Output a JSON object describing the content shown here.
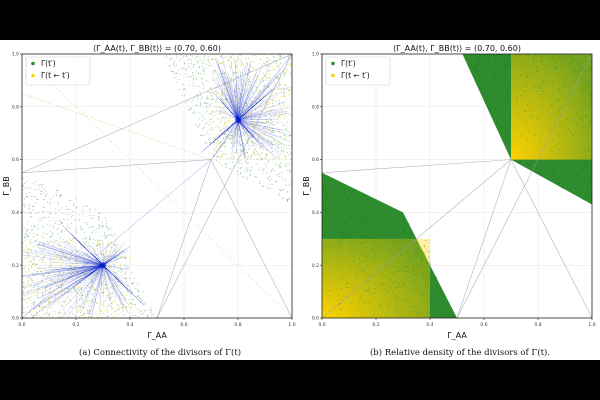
{
  "chart_data": [
    {
      "type": "scatter",
      "panel": "a",
      "title": "⟨Γ_AA(t), Γ_BB(t)⟩ = (0.70, 0.60)",
      "xlabel": "Γ_AA",
      "ylabel": "Γ_BB",
      "xlim": [
        0,
        1
      ],
      "ylim": [
        0,
        1
      ],
      "xticks": [
        "0.0",
        "0.2",
        "0.4",
        "0.6",
        "0.8",
        "1.0"
      ],
      "yticks": [
        "0.0",
        "0.2",
        "0.4",
        "0.6",
        "0.8",
        "1.0"
      ],
      "grid": true,
      "legend_position": "top-left",
      "center_point": [
        0.7,
        0.6
      ],
      "series": [
        {
          "name": "Γ(t′)",
          "color": "#2e8b2e",
          "region_polygons": [
            [
              [
                0.0,
                0.55
              ],
              [
                0.3,
                0.4
              ],
              [
                0.5,
                0.0
              ],
              [
                0.0,
                0.0
              ]
            ],
            [
              [
                0.7,
                0.6
              ],
              [
                0.52,
                1.0
              ],
              [
                1.0,
                1.0
              ],
              [
                1.0,
                0.43
              ]
            ]
          ]
        },
        {
          "name": "Γ(t ← t′)",
          "color": "#ffd200",
          "region_boxes": [
            [
              0.0,
              0.0,
              0.4,
              0.3
            ],
            [
              0.7,
              0.6,
              1.0,
              1.0
            ]
          ]
        }
      ],
      "connectivity": {
        "color": "#0018c8",
        "hubs": [
          {
            "center": [
              0.3,
              0.2
            ],
            "scatter_box": [
              0.0,
              0.0,
              0.4,
              0.3
            ]
          },
          {
            "center": [
              0.8,
              0.75
            ],
            "scatter_box": [
              0.7,
              0.6,
              1.0,
              1.0
            ]
          }
        ]
      },
      "reference_lines": {
        "blue": [
          [
            [
              0.0,
              0.0
            ],
            [
              0.7,
              0.6
            ]
          ],
          [
            [
              0.7,
              0.6
            ],
            [
              1.0,
              1.0
            ]
          ]
        ],
        "gray": [
          [
            [
              0.0,
              0.55
            ],
            [
              0.7,
              0.6
            ]
          ],
          [
            [
              0.5,
              0.0
            ],
            [
              0.7,
              0.6
            ]
          ],
          [
            [
              0.5,
              0.0
            ],
            [
              1.0,
              1.0
            ]
          ],
          [
            [
              0.0,
              0.55
            ],
            [
              1.0,
              1.0
            ]
          ],
          [
            [
              1.0,
              0.0
            ],
            [
              0.7,
              0.6
            ]
          ]
        ],
        "gold": [
          [
            [
              0.0,
              1.0
            ],
            [
              1.0,
              0.0
            ]
          ],
          [
            [
              0.0,
              0.85
            ],
            [
              0.7,
              0.6
            ]
          ]
        ]
      }
    },
    {
      "type": "scatter",
      "panel": "b",
      "title": "⟨Γ_AA(t), Γ_BB(t)⟩ = (0.70, 0.60)",
      "xlabel": "Γ_AA",
      "ylabel": "Γ_BB",
      "xlim": [
        0,
        1
      ],
      "ylim": [
        0,
        1
      ],
      "xticks": [
        "0.0",
        "0.2",
        "0.4",
        "0.6",
        "0.8",
        "1.0"
      ],
      "yticks": [
        "0.0",
        "0.2",
        "0.4",
        "0.6",
        "0.8",
        "1.0"
      ],
      "grid": true,
      "legend_position": "top-left",
      "center_point": [
        0.7,
        0.6
      ],
      "series": [
        {
          "name": "Γ(t′)",
          "color": "#2e8b2e",
          "region_polygons": [
            [
              [
                0.0,
                0.55
              ],
              [
                0.3,
                0.4
              ],
              [
                0.5,
                0.0
              ],
              [
                0.0,
                0.0
              ]
            ],
            [
              [
                0.7,
                0.6
              ],
              [
                0.52,
                1.0
              ],
              [
                1.0,
                1.0
              ],
              [
                1.0,
                0.43
              ]
            ]
          ]
        },
        {
          "name": "Γ(t ← t′)",
          "color": "#ffd200",
          "region_boxes": [
            [
              0.0,
              0.0,
              0.4,
              0.3
            ],
            [
              0.7,
              0.6,
              1.0,
              1.0
            ]
          ]
        }
      ],
      "reference_lines": {
        "gray": [
          [
            [
              0.0,
              0.55
            ],
            [
              0.7,
              0.6
            ]
          ],
          [
            [
              0.5,
              0.0
            ],
            [
              0.7,
              0.6
            ]
          ],
          [
            [
              0.5,
              0.0
            ],
            [
              1.0,
              1.0
            ]
          ],
          [
            [
              1.0,
              0.0
            ],
            [
              0.7,
              0.6
            ]
          ],
          [
            [
              0.0,
              0.0
            ],
            [
              0.7,
              0.6
            ]
          ]
        ]
      }
    }
  ],
  "captions": {
    "a": "(a) Connectivity of the divisors of Γ(t)",
    "b": "(b) Relative density of the divisors of Γ(t)."
  },
  "colors": {
    "green": "#2e8b2e",
    "yellow": "#ffd200",
    "blue": "#0018c8",
    "gray": "#9aa0b4",
    "grid": "#e4e4e4"
  }
}
